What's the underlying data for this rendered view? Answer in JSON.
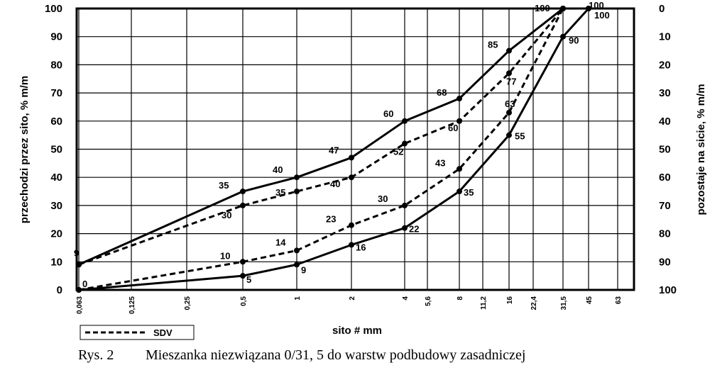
{
  "chart_data": {
    "type": "line",
    "x_ticks": [
      "0,063",
      "0,125",
      "0,25",
      "0,5",
      "1",
      "2",
      "4",
      "5,6",
      "8",
      "11,2",
      "16",
      "22,4",
      "31,5",
      "45",
      "63"
    ],
    "xlabel": "sito # mm",
    "ylabel_left": "przechodzi przez sito, % m/m",
    "ylabel_right": "pozostaje na sicie, % m/m",
    "ylim": [
      0,
      100
    ],
    "y_ticks_left": [
      "0",
      "10",
      "20",
      "30",
      "40",
      "50",
      "60",
      "70",
      "80",
      "90",
      "100"
    ],
    "y_ticks_right": [
      "100",
      "90",
      "80",
      "70",
      "60",
      "50",
      "40",
      "30",
      "20",
      "10",
      "0"
    ],
    "grid": true,
    "series": [
      {
        "style": "solid",
        "x": [
          "0,063",
          "0,5",
          "1",
          "2",
          "4",
          "8",
          "16",
          "31,5",
          "45"
        ],
        "y": [
          9,
          35,
          40,
          47,
          60,
          68,
          85,
          100,
          100
        ],
        "labels": [
          "9",
          "35",
          "40",
          "47",
          "60",
          "68",
          "85",
          "100",
          "100"
        ]
      },
      {
        "style": "solid",
        "x": [
          "0,063",
          "0,5",
          "1",
          "2",
          "4",
          "8",
          "16",
          "31,5",
          "45"
        ],
        "y": [
          0,
          5,
          9,
          16,
          22,
          35,
          55,
          90,
          100
        ],
        "labels": [
          "0",
          "5",
          "9",
          "16",
          "22",
          "35",
          "55",
          "90",
          "100"
        ]
      },
      {
        "name": "SDV",
        "style": "dashed",
        "x": [
          "0,063",
          "0,5",
          "1",
          "2",
          "4",
          "8",
          "16",
          "31,5"
        ],
        "y": [
          9,
          30,
          35,
          40,
          52,
          60,
          77,
          100
        ],
        "labels": [
          "",
          "30",
          "35",
          "40",
          "52",
          "60",
          "77",
          ""
        ]
      },
      {
        "style": "dashed",
        "x": [
          "0,063",
          "0,5",
          "1",
          "2",
          "4",
          "8",
          "16",
          "31,5"
        ],
        "y": [
          0,
          10,
          14,
          23,
          30,
          43,
          63,
          100
        ],
        "labels": [
          "",
          "10",
          "14",
          "23",
          "30",
          "43",
          "63",
          ""
        ]
      }
    ],
    "legend": {
      "entries": [
        "SDV"
      ],
      "placement": "bottom-left"
    }
  },
  "caption": {
    "number": "Rys. 2",
    "text": "Mieszanka niezwiązana 0/31, 5 do warstw podbudowy zasadniczej"
  }
}
